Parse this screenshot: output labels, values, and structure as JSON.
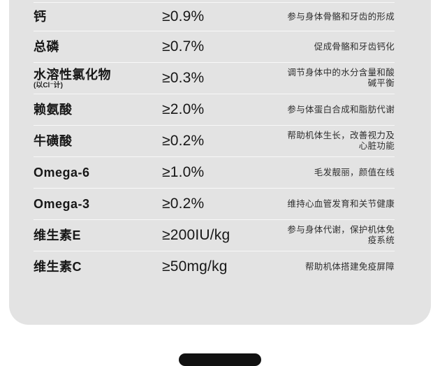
{
  "page": {
    "background_color": "#ffffff",
    "card_color": "#e3e3e3",
    "divider_color": "#f8f8f8",
    "text_color": "#171717",
    "desc_color": "#2e2e2e",
    "next_section_color": "#111111"
  },
  "table": {
    "rows": [
      {
        "name": "钙",
        "value": "≥0.9%",
        "desc": "参与身体骨骼和牙齿的形成"
      },
      {
        "name": "总磷",
        "value": "≥0.7%",
        "desc": "促成骨骼和牙齿钙化"
      },
      {
        "name": "水溶性氯化物",
        "sub": "(以Cl⁻计)",
        "value": "≥0.3%",
        "desc": "调节身体中的水分含量和酸\n碱平衡"
      },
      {
        "name": "赖氨酸",
        "value": "≥2.0%",
        "desc": "参与体蛋白合成和脂肪代谢"
      },
      {
        "name": "牛磺酸",
        "value": "≥0.2%",
        "desc": "帮助机体生长，改善视力及\n心脏功能"
      },
      {
        "name": "Omega-6",
        "value": "≥1.0%",
        "desc": "毛发靓丽，颜值在线"
      },
      {
        "name": "Omega-3",
        "value": "≥0.2%",
        "desc": "维持心血管发育和关节健康"
      },
      {
        "name": "维生素E",
        "value": "≥200IU/kg",
        "desc": "参与身体代谢，保护机体免\n疫系统"
      },
      {
        "name": "维生素C",
        "value": "≥50mg/kg",
        "desc": "帮助机体搭建免疫屏障"
      }
    ]
  }
}
